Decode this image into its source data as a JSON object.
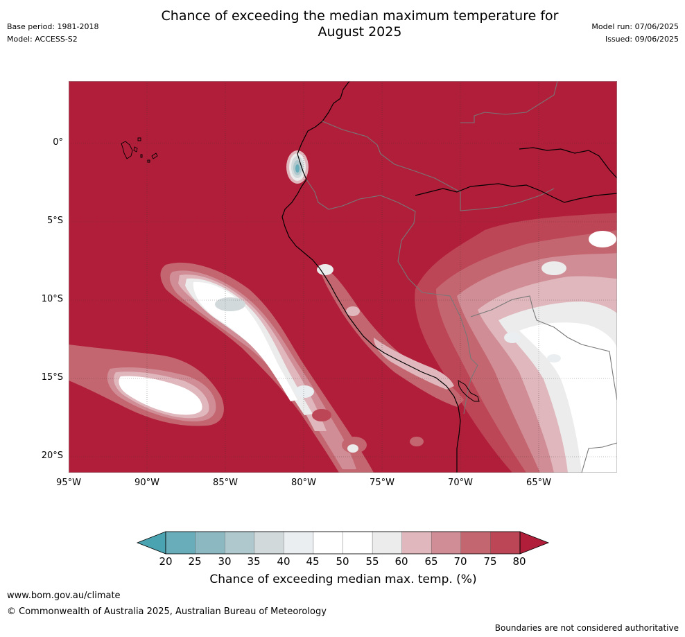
{
  "header": {
    "title_line1": "Chance of exceeding the median maximum temperature for",
    "title_line2": "August 2025",
    "base_period": "Base period: 1981-2018",
    "model": "Model: ACCESS-S2",
    "model_run": "Model run: 07/06/2025",
    "issued": "Issued: 09/06/2025"
  },
  "map": {
    "lat_labels": [
      "0°",
      "5°S",
      "10°S",
      "15°S",
      "20°S"
    ],
    "lon_labels": [
      "95°W",
      "90°W",
      "85°W",
      "80°W",
      "75°W",
      "70°W",
      "65°W"
    ],
    "background_category_color": "#b11e3a"
  },
  "colorbar": {
    "ticks": [
      "20",
      "25",
      "30",
      "35",
      "40",
      "45",
      "50",
      "55",
      "60",
      "65",
      "70",
      "75",
      "80"
    ],
    "colors": [
      "#69adba",
      "#8cb8c2",
      "#aec8cd",
      "#d2d9db",
      "#eaeef0",
      "#ffffff",
      "#ffffff",
      "#ececec",
      "#dfb7bc",
      "#d08d96",
      "#c46670",
      "#bd4656",
      "#b11e3a"
    ],
    "below_color": "#4aa3b0",
    "above_color": "#b11e3a",
    "title": "Chance of exceeding median max. temp. (%)"
  },
  "footer": {
    "url": "www.bom.gov.au/climate",
    "copyright": "© Commonwealth of Australia 2025, Australian Bureau of Meteorology",
    "note": "Boundaries are not considered authoritative"
  }
}
